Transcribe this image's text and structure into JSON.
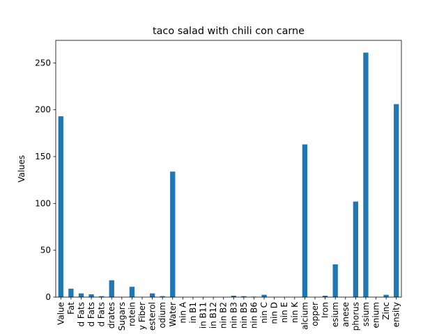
{
  "chart_data": {
    "type": "bar",
    "title": "taco salad with chili con carne",
    "xlabel": "",
    "ylabel": "Values",
    "ylim": [
      0,
      274.05
    ],
    "yticks": [
      0,
      50,
      100,
      150,
      200,
      250
    ],
    "grid": false,
    "legend": "none",
    "bar_color": "#1f77b4",
    "categories": [
      "Value",
      "Fat",
      "d Fats",
      "d Fats",
      "d Fats",
      "drates",
      "Sugars",
      "rotein",
      "y Fiber",
      "esterol",
      "odium",
      "Water",
      "nin A",
      "in B1",
      "in B11",
      "in B12",
      "nin B2",
      "nin B3",
      "nin B5",
      "nin B6",
      "nin C",
      "nin D",
      "nin E",
      "nin K",
      "alcium",
      "opper",
      "Iron",
      "esium",
      "anese",
      "phorus",
      "ssium",
      "enium",
      "Zinc",
      "ensity"
    ],
    "values": [
      193,
      9,
      4,
      3,
      1,
      18,
      0,
      11,
      0,
      4,
      1,
      134,
      0,
      0,
      0,
      0,
      0,
      1.5,
      1,
      0.5,
      2.5,
      0,
      0,
      0,
      163,
      0,
      1.5,
      35,
      0,
      102,
      261,
      0,
      2.5,
      206
    ]
  }
}
